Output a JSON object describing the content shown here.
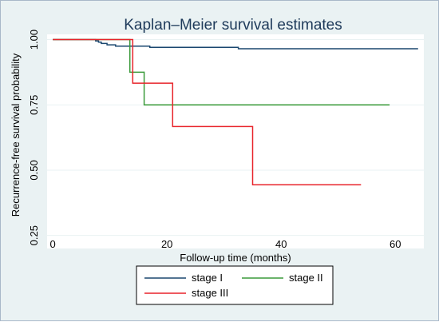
{
  "chart_data": {
    "type": "line",
    "title": "Kaplan–Meier survival estimates",
    "xlabel": "Follow-up time (months)",
    "ylabel": "Recurrence-free survival probability",
    "xlim": [
      -1,
      65
    ],
    "ylim": [
      0.2,
      1.02
    ],
    "xticks": [
      0,
      20,
      40,
      60
    ],
    "yticks": [
      0.25,
      0.5,
      0.75,
      1.0
    ],
    "ytick_labels": [
      "0.25",
      "0.50",
      "0.75",
      "1.00"
    ],
    "grid": true,
    "legend_position": "bottom",
    "series": [
      {
        "name": "stage I",
        "color": "#1a476f",
        "points": [
          [
            0,
            1.0
          ],
          [
            7.5,
            1.0
          ],
          [
            7.5,
            0.995
          ],
          [
            8,
            0.995
          ],
          [
            8,
            0.99
          ],
          [
            8.5,
            0.99
          ],
          [
            8.5,
            0.985
          ],
          [
            9.5,
            0.985
          ],
          [
            9.5,
            0.98
          ],
          [
            11,
            0.98
          ],
          [
            11,
            0.975
          ],
          [
            17,
            0.975
          ],
          [
            17,
            0.97
          ],
          [
            32.5,
            0.97
          ],
          [
            32.5,
            0.965
          ],
          [
            64,
            0.965
          ]
        ]
      },
      {
        "name": "stage II",
        "color": "#3a9a3a",
        "points": [
          [
            0,
            1.0
          ],
          [
            13.5,
            1.0
          ],
          [
            13.5,
            0.875
          ],
          [
            16,
            0.875
          ],
          [
            16,
            0.75
          ],
          [
            59,
            0.75
          ]
        ]
      },
      {
        "name": "stage III",
        "color": "#e8242b",
        "points": [
          [
            0,
            1.0
          ],
          [
            14,
            1.0
          ],
          [
            14,
            0.833
          ],
          [
            21,
            0.833
          ],
          [
            21,
            0.667
          ],
          [
            35,
            0.667
          ],
          [
            35,
            0.444
          ],
          [
            54,
            0.444
          ]
        ]
      }
    ]
  }
}
